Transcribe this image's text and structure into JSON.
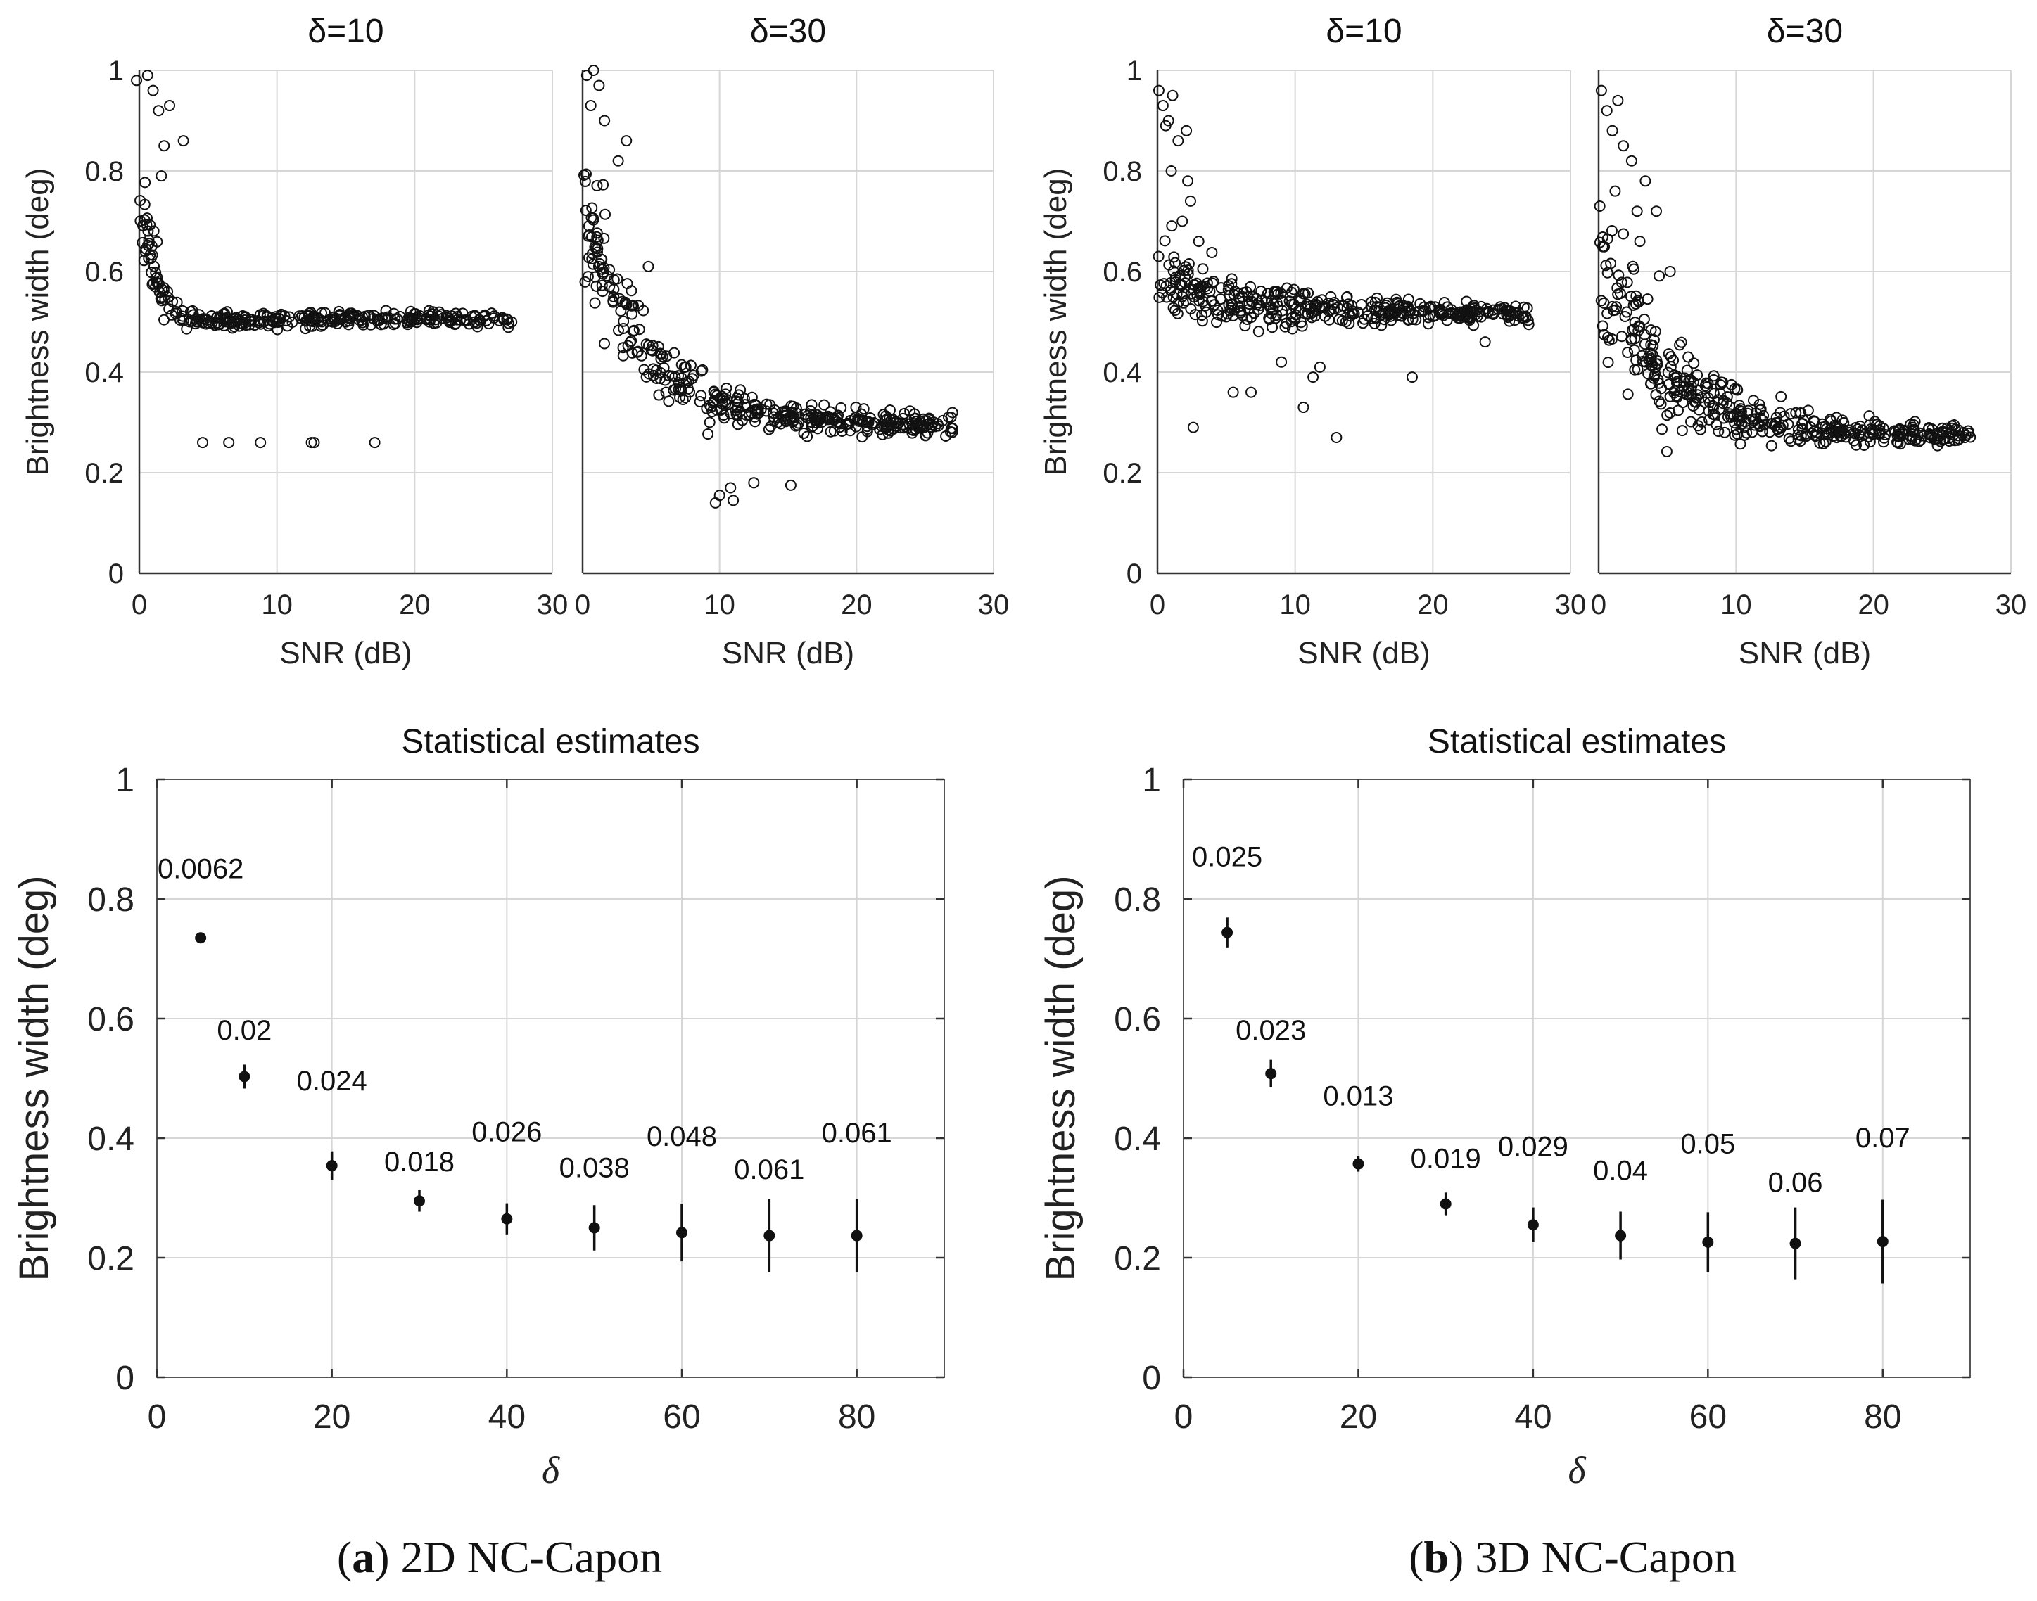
{
  "chart_data": [
    {
      "id": "a-scatter-d10",
      "type": "scatter",
      "title": "δ=10",
      "xlabel": "SNR (dB)",
      "ylabel": "Brightness width (deg)",
      "xlim": [
        0,
        30
      ],
      "ylim": [
        0,
        1
      ],
      "xticks": [
        0,
        10,
        20,
        30
      ],
      "yticks": [
        0,
        0.2,
        0.4,
        0.6,
        0.8,
        1
      ],
      "ytick_labels": [
        "0",
        "0.2",
        "0.4",
        "0.6",
        "0.8",
        "1"
      ],
      "grid": true,
      "model": {
        "initial": 0.8,
        "final": 0.505,
        "decay_snr": 0.9,
        "noise_start": 0.06,
        "noise_end": 0.008,
        "n": 320,
        "seed": 11
      },
      "extra_points": [
        [
          -0.2,
          0.98
        ],
        [
          0.6,
          0.99
        ],
        [
          1.4,
          0.92
        ],
        [
          1.8,
          0.85
        ],
        [
          2.2,
          0.93
        ],
        [
          3.2,
          0.86
        ],
        [
          1.0,
          0.96
        ],
        [
          1.6,
          0.79
        ]
      ],
      "outliers": [
        [
          4.6,
          0.26
        ],
        [
          6.5,
          0.26
        ],
        [
          8.8,
          0.26
        ],
        [
          12.5,
          0.26
        ],
        [
          12.7,
          0.26
        ],
        [
          17.1,
          0.26
        ]
      ]
    },
    {
      "id": "a-scatter-d30",
      "type": "scatter",
      "title": "δ=30",
      "xlabel": "SNR (dB)",
      "ylabel": "",
      "xlim": [
        0,
        30
      ],
      "ylim": [
        0,
        1
      ],
      "xticks": [
        0,
        10,
        20,
        30
      ],
      "yticks": [
        0,
        0.2,
        0.4,
        0.6,
        0.8,
        1
      ],
      "grid": true,
      "model": {
        "initial": 0.74,
        "final": 0.295,
        "decay_snr": 4.5,
        "noise_start": 0.07,
        "noise_end": 0.01,
        "n": 380,
        "seed": 23
      },
      "extra_points": [
        [
          0.3,
          0.99
        ],
        [
          0.8,
          1.0
        ],
        [
          1.2,
          0.97
        ],
        [
          0.6,
          0.93
        ],
        [
          3.2,
          0.86
        ],
        [
          1.6,
          0.9
        ],
        [
          4.8,
          0.61
        ],
        [
          2.6,
          0.82
        ]
      ],
      "outliers": [
        [
          9.7,
          0.14
        ],
        [
          10.0,
          0.155
        ],
        [
          10.8,
          0.17
        ],
        [
          11.0,
          0.145
        ],
        [
          12.5,
          0.18
        ],
        [
          15.2,
          0.175
        ]
      ]
    },
    {
      "id": "b-scatter-d10",
      "type": "scatter",
      "title": "δ=10",
      "xlabel": "SNR (dB)",
      "ylabel": "Brightness width (deg)",
      "xlim": [
        0,
        30
      ],
      "ylim": [
        0,
        1
      ],
      "xticks": [
        0,
        10,
        20,
        30
      ],
      "yticks": [
        0,
        0.2,
        0.4,
        0.6,
        0.8,
        1
      ],
      "grid": true,
      "model": {
        "initial": 0.58,
        "final": 0.515,
        "decay_snr": 6,
        "noise_start": 0.045,
        "noise_end": 0.008,
        "n": 380,
        "seed": 37
      },
      "extra_points": [
        [
          0.1,
          0.96
        ],
        [
          0.4,
          0.93
        ],
        [
          0.8,
          0.9
        ],
        [
          1.1,
          0.95
        ],
        [
          1.5,
          0.86
        ],
        [
          2.1,
          0.88
        ],
        [
          1.0,
          0.8
        ],
        [
          2.4,
          0.74
        ],
        [
          1.8,
          0.7
        ],
        [
          3.0,
          0.66
        ],
        [
          0.6,
          0.89
        ],
        [
          2.2,
          0.78
        ]
      ],
      "outliers": [
        [
          2.6,
          0.29
        ],
        [
          5.5,
          0.36
        ],
        [
          6.8,
          0.36
        ],
        [
          9.0,
          0.42
        ],
        [
          10.6,
          0.33
        ],
        [
          11.3,
          0.39
        ],
        [
          11.8,
          0.41
        ],
        [
          13.0,
          0.27
        ],
        [
          18.5,
          0.39
        ],
        [
          23.8,
          0.46
        ]
      ]
    },
    {
      "id": "b-scatter-d30",
      "type": "scatter",
      "title": "δ=30",
      "xlabel": "SNR (dB)",
      "ylabel": "",
      "xlim": [
        0,
        30
      ],
      "ylim": [
        0,
        1
      ],
      "xticks": [
        0,
        10,
        20,
        30
      ],
      "yticks": [
        0,
        0.2,
        0.4,
        0.6,
        0.8,
        1
      ],
      "grid": true,
      "model": {
        "initial": 0.6,
        "final": 0.275,
        "decay_snr": 5.0,
        "noise_start": 0.1,
        "noise_end": 0.008,
        "n": 420,
        "seed": 51
      },
      "extra_points": [
        [
          0.2,
          0.96
        ],
        [
          0.6,
          0.92
        ],
        [
          1.0,
          0.88
        ],
        [
          1.4,
          0.94
        ],
        [
          1.8,
          0.85
        ],
        [
          2.4,
          0.82
        ],
        [
          3.4,
          0.78
        ],
        [
          4.2,
          0.72
        ],
        [
          5.2,
          0.6
        ],
        [
          2.8,
          0.72
        ],
        [
          3.0,
          0.66
        ],
        [
          1.2,
          0.76
        ]
      ],
      "outliers": []
    },
    {
      "id": "a-errorbar",
      "type": "errorbar",
      "title": "Statistical estimates",
      "xlabel": "δ",
      "ylabel": "Brightness width (deg)",
      "xlim": [
        0,
        90
      ],
      "ylim": [
        0,
        1
      ],
      "xticks": [
        0,
        20,
        40,
        60,
        80
      ],
      "yticks": [
        0,
        0.2,
        0.4,
        0.6,
        0.8,
        1
      ],
      "ytick_labels": [
        "0",
        "0.2",
        "0.4",
        "0.6",
        "0.8",
        "1"
      ],
      "grid": true,
      "x": [
        5,
        10,
        20,
        30,
        40,
        50,
        60,
        70,
        80
      ],
      "y": [
        0.735,
        0.503,
        0.354,
        0.295,
        0.265,
        0.25,
        0.242,
        0.237,
        0.237
      ],
      "err": [
        0.0062,
        0.02,
        0.024,
        0.018,
        0.026,
        0.038,
        0.048,
        0.061,
        0.061
      ],
      "labels": [
        "0.0062",
        "0.02",
        "0.024",
        "0.018",
        "0.026",
        "0.038",
        "0.048",
        "0.061",
        "0.061"
      ],
      "label_y": [
        0.835,
        0.565,
        0.48,
        0.345,
        0.395,
        0.335,
        0.387,
        0.332,
        0.393
      ]
    },
    {
      "id": "b-errorbar",
      "type": "errorbar",
      "title": "Statistical estimates",
      "xlabel": "δ",
      "ylabel": "Brightness width (deg)",
      "xlim": [
        0,
        90
      ],
      "ylim": [
        0,
        1
      ],
      "xticks": [
        0,
        20,
        40,
        60,
        80
      ],
      "yticks": [
        0,
        0.2,
        0.4,
        0.6,
        0.8,
        1
      ],
      "ytick_labels": [
        "0",
        "0.2",
        "0.4",
        "0.6",
        "0.8",
        "1"
      ],
      "grid": true,
      "x": [
        5,
        10,
        20,
        30,
        40,
        50,
        60,
        70,
        80
      ],
      "y": [
        0.744,
        0.508,
        0.357,
        0.29,
        0.255,
        0.237,
        0.226,
        0.224,
        0.227
      ],
      "err": [
        0.025,
        0.023,
        0.013,
        0.019,
        0.029,
        0.04,
        0.05,
        0.06,
        0.07
      ],
      "labels": [
        "0.025",
        "0.023",
        "0.013",
        "0.019",
        "0.029",
        "0.04",
        "0.05",
        "0.06",
        "0.07"
      ],
      "label_y": [
        0.855,
        0.565,
        0.455,
        0.35,
        0.37,
        0.33,
        0.375,
        0.31,
        0.385
      ]
    }
  ],
  "captions": {
    "a": {
      "letter": "a",
      "text": " 2D NC-Capon"
    },
    "b": {
      "letter": "b",
      "text": " 3D NC-Capon"
    }
  }
}
